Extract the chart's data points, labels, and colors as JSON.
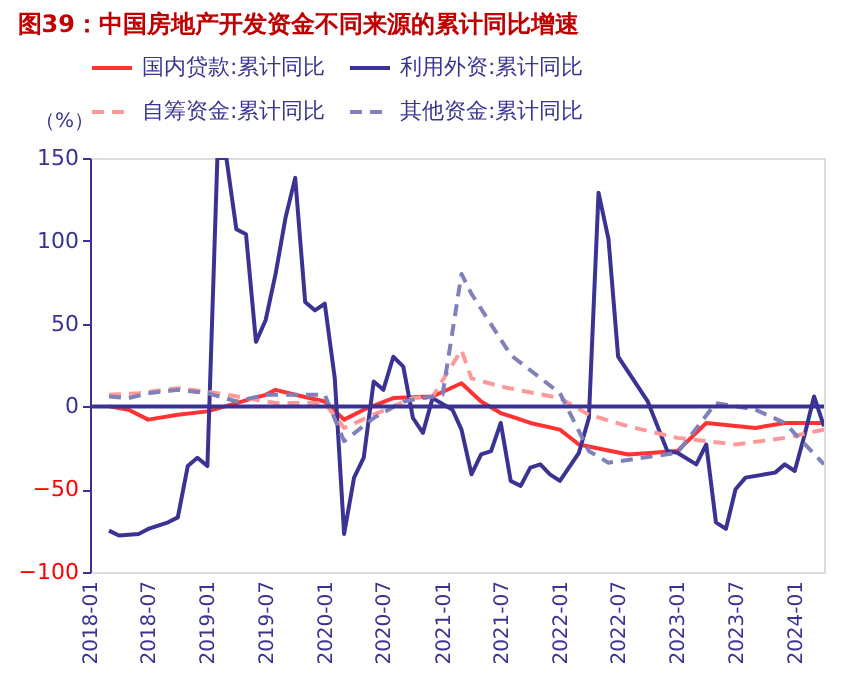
{
  "chart_data": {
    "type": "line",
    "title": "图39：中国房地产开发资金不同来源的累计同比增速",
    "ylabel": "（%）",
    "xlim": [
      "2018-01",
      "2024-04"
    ],
    "ylim": [
      -100,
      150
    ],
    "yticks": [
      -100,
      -50,
      0,
      50,
      100,
      150
    ],
    "xticks": [
      "2018-01",
      "2018-07",
      "2019-01",
      "2019-07",
      "2020-01",
      "2020-07",
      "2021-01",
      "2021-07",
      "2022-01",
      "2022-07",
      "2023-01",
      "2023-07",
      "2024-01"
    ],
    "grid": false,
    "legend": "top",
    "marker": "none",
    "ref_lines": [
      {
        "axis": "y",
        "value": 0,
        "color": "#3a3393",
        "line_style": "solid"
      }
    ],
    "series": [
      {
        "name": "国内贷款:累计同比",
        "color": "#ff3333",
        "line_style": "solid",
        "x": [
          "2018-03",
          "2018-05",
          "2018-07",
          "2018-10",
          "2019-01",
          "2019-04",
          "2019-07",
          "2019-08",
          "2019-10",
          "2020-01",
          "2020-03",
          "2020-05",
          "2020-08",
          "2020-12",
          "2021-03",
          "2021-05",
          "2021-07",
          "2021-10",
          "2022-01",
          "2022-03",
          "2022-08",
          "2023-01",
          "2023-04",
          "2023-09",
          "2023-12",
          "2024-04"
        ],
        "values": [
          0,
          -2,
          -8,
          -5,
          -3,
          2,
          7,
          10,
          7,
          3,
          -8,
          -2,
          5,
          6,
          14,
          3,
          -4,
          -10,
          -14,
          -23,
          -29,
          -27,
          -10,
          -13,
          -10,
          -10
        ]
      },
      {
        "name": "利用外资:累计同比",
        "color": "#3a3393",
        "line_style": "solid",
        "x": [
          "2018-03",
          "2018-04",
          "2018-06",
          "2018-07",
          "2018-09",
          "2018-10",
          "2018-11",
          "2018-12",
          "2019-01",
          "2019-02",
          "2019-03",
          "2019-04",
          "2019-05",
          "2019-06",
          "2019-07",
          "2019-08",
          "2019-09",
          "2019-10",
          "2019-11",
          "2019-12",
          "2020-01",
          "2020-02",
          "2020-03",
          "2020-04",
          "2020-05",
          "2020-06",
          "2020-07",
          "2020-08",
          "2020-09",
          "2020-10",
          "2020-11",
          "2020-12",
          "2021-02",
          "2021-03",
          "2021-04",
          "2021-05",
          "2021-06",
          "2021-07",
          "2021-08",
          "2021-09",
          "2021-10",
          "2021-11",
          "2021-12",
          "2022-01",
          "2022-03",
          "2022-04",
          "2022-05",
          "2022-06",
          "2022-07",
          "2022-10",
          "2022-12",
          "2023-01",
          "2023-03",
          "2023-04",
          "2023-05",
          "2023-06",
          "2023-07",
          "2023-08",
          "2023-10",
          "2023-11",
          "2023-12",
          "2024-01",
          "2024-02",
          "2024-03",
          "2024-04"
        ],
        "values": [
          -75,
          -78,
          -77,
          -74,
          -70,
          -67,
          -36,
          -31,
          -36,
          150,
          150,
          107,
          104,
          39,
          52,
          80,
          114,
          138,
          63,
          58,
          62,
          17,
          -77,
          -43,
          -31,
          15,
          10,
          30,
          24,
          -7,
          -16,
          5,
          -2,
          -14,
          -41,
          -29,
          -27,
          -10,
          -45,
          -48,
          -37,
          -35,
          -41,
          -45,
          -28,
          -7,
          129,
          101,
          30,
          3,
          -27,
          -28,
          -35,
          -23,
          -70,
          -74,
          -50,
          -43,
          -41,
          -40,
          -35,
          -39,
          -17,
          6,
          -12
        ]
      },
      {
        "name": "自筹资金:累计同比",
        "color": "#ff9999",
        "line_style": "dashed",
        "x": [
          "2018-03",
          "2018-06",
          "2018-10",
          "2019-02",
          "2019-05",
          "2019-08",
          "2019-11",
          "2020-01",
          "2020-03",
          "2020-06",
          "2020-10",
          "2020-12",
          "2021-03",
          "2021-04",
          "2021-07",
          "2022-01",
          "2022-04",
          "2022-08",
          "2023-01",
          "2023-07",
          "2023-12",
          "2024-04"
        ],
        "values": [
          7,
          8,
          11,
          8,
          5,
          2,
          2,
          2,
          -13,
          -5,
          5,
          6,
          34,
          17,
          12,
          5,
          -5,
          -12,
          -19,
          -23,
          -19,
          -14
        ]
      },
      {
        "name": "其他资金:累计同比",
        "color": "#8080bb",
        "line_style": "dashed",
        "x": [
          "2018-03",
          "2018-05",
          "2018-07",
          "2018-10",
          "2019-01",
          "2019-04",
          "2019-07",
          "2019-11",
          "2020-01",
          "2020-03",
          "2020-06",
          "2020-09",
          "2020-12",
          "2021-01",
          "2021-03",
          "2021-04",
          "2021-08",
          "2022-01",
          "2022-04",
          "2022-06",
          "2023-01",
          "2023-05",
          "2023-09",
          "2023-12",
          "2024-04"
        ],
        "values": [
          6,
          5,
          8,
          10,
          8,
          3,
          7,
          7,
          7,
          -21,
          -7,
          3,
          6,
          7,
          80,
          68,
          31,
          8,
          -27,
          -34,
          -28,
          2,
          -2,
          -10,
          -35
        ]
      }
    ]
  }
}
